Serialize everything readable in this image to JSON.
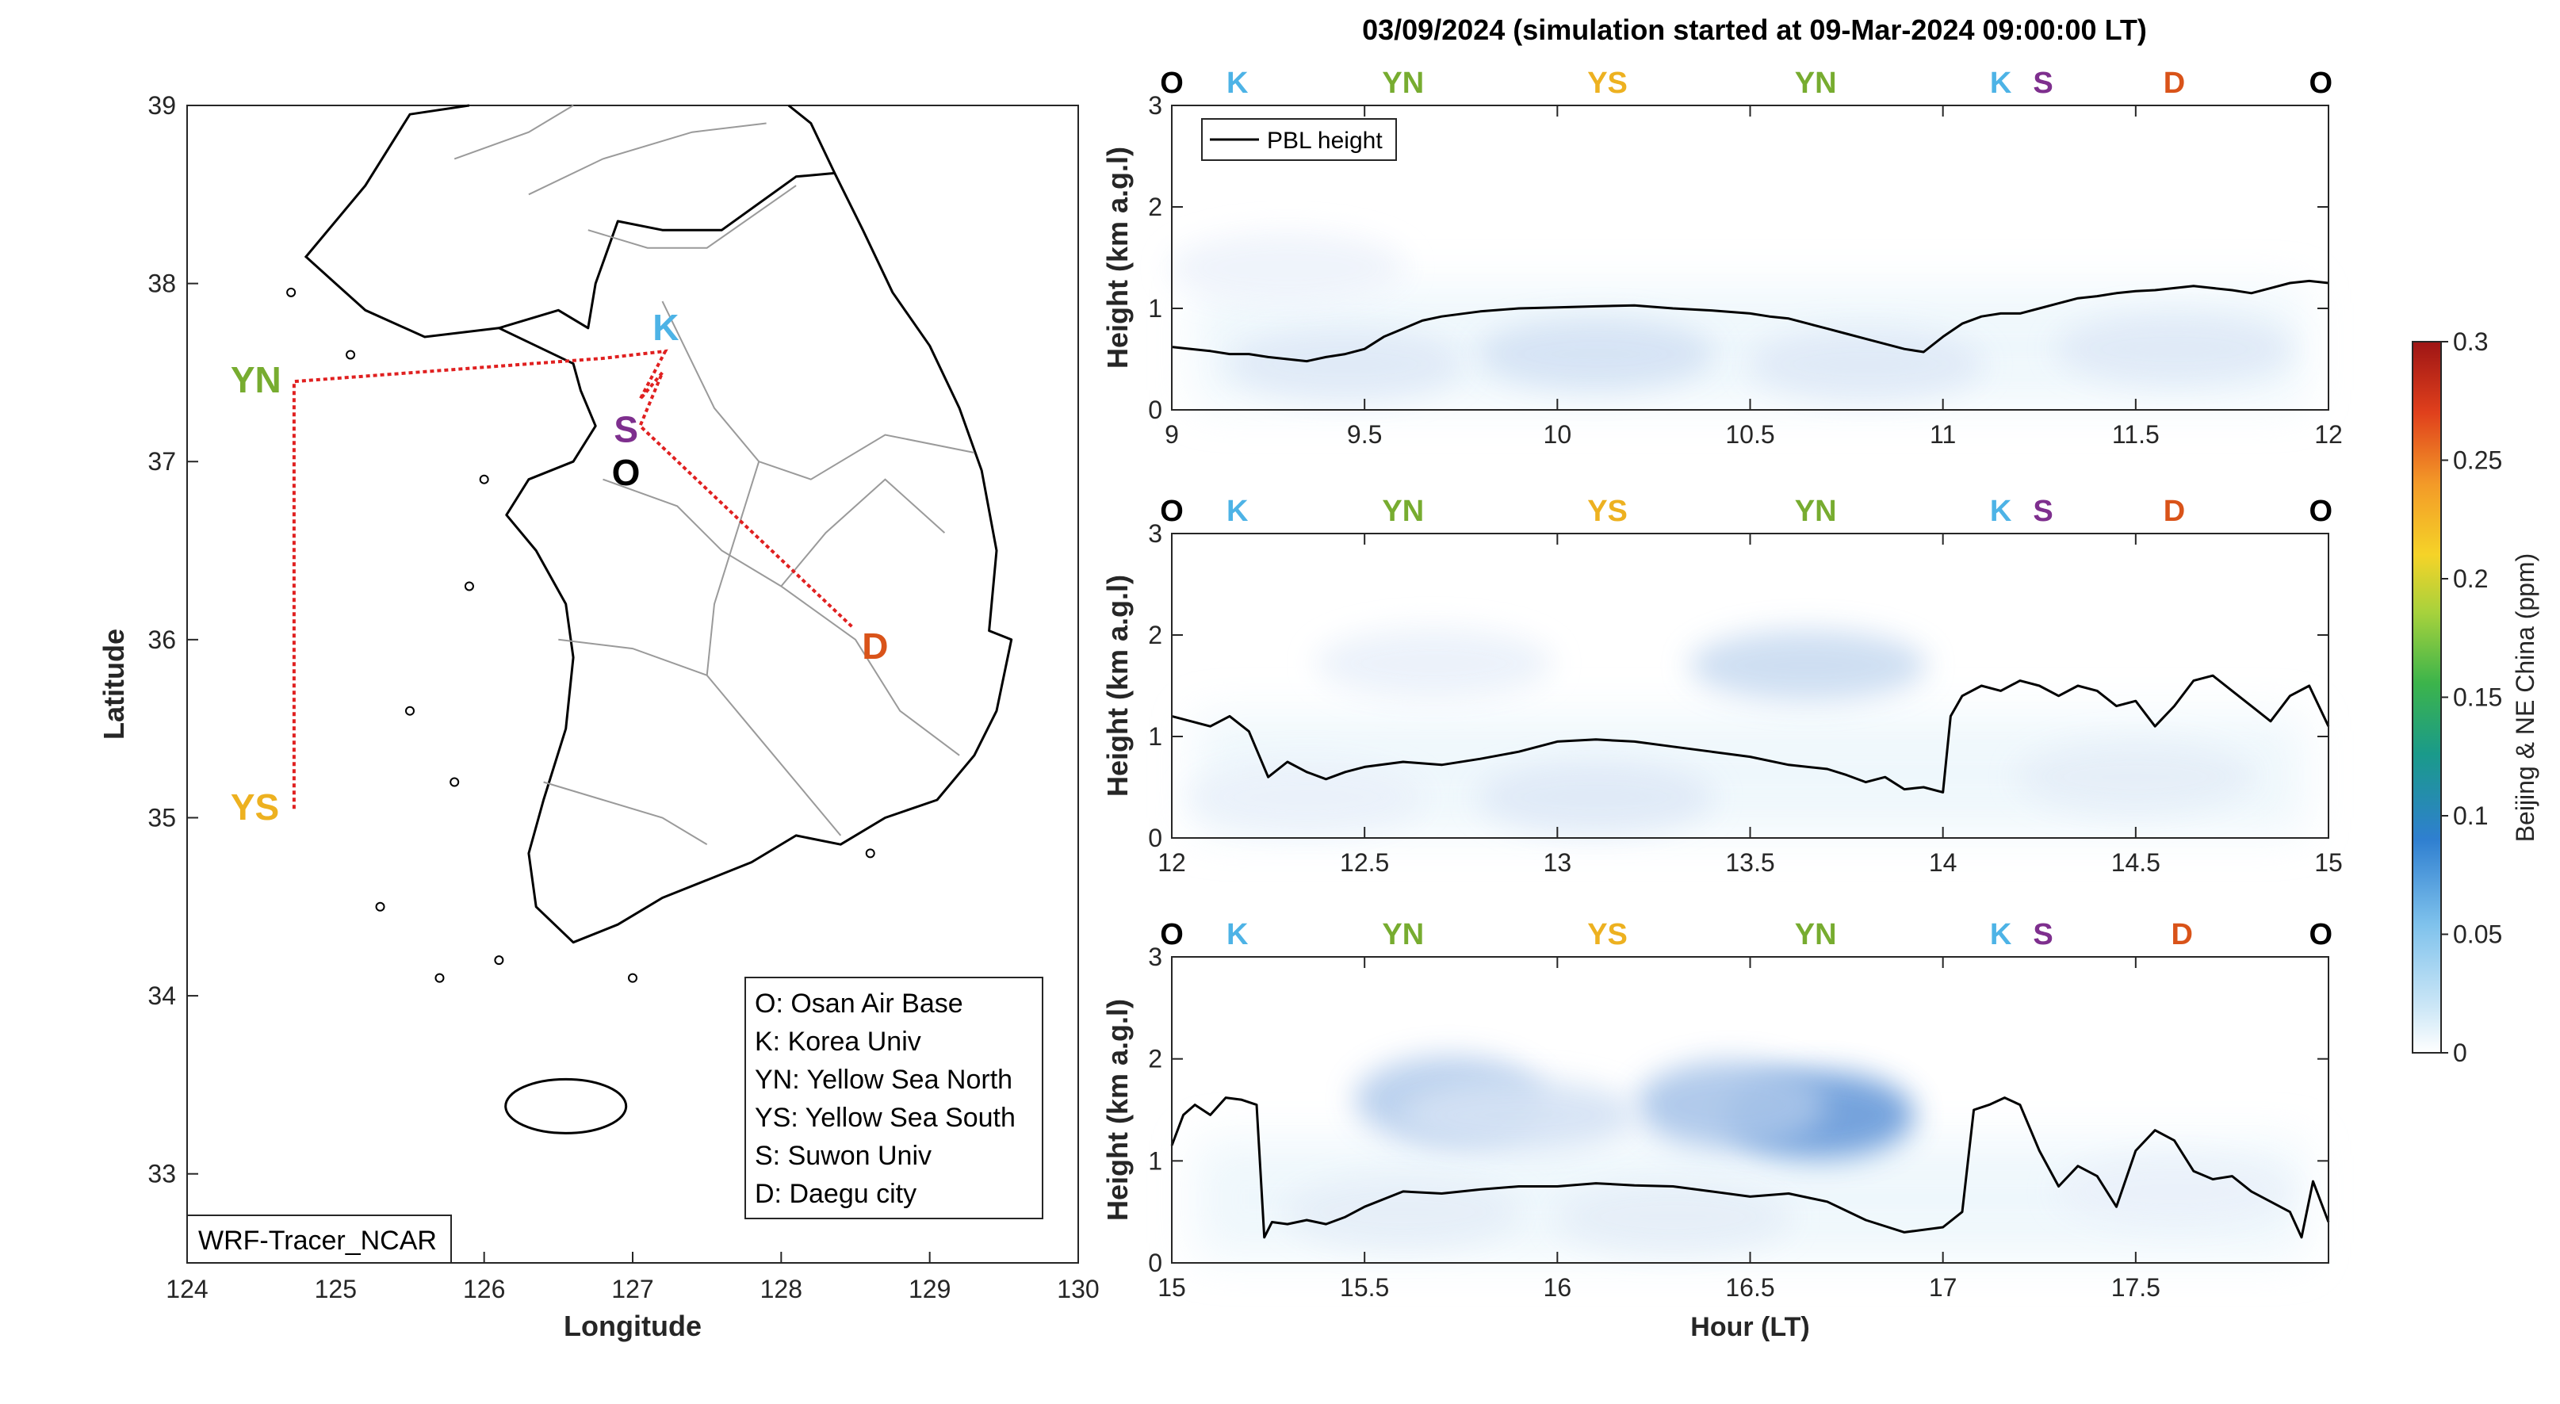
{
  "title": "03/09/2024 (simulation started at 09-Mar-2024 09:00:00 LT)",
  "colors": {
    "O": "#000000",
    "K": "#4db3e6",
    "S": "#7e2f8e",
    "YN": "#77ac30",
    "YS": "#edb120",
    "D": "#d95319",
    "track": "#e02020",
    "pbl": "#000000"
  },
  "map": {
    "xlabel": "Longitude",
    "ylabel": "Latitude",
    "xlim": [
      124,
      130
    ],
    "ylim": [
      32.5,
      39
    ],
    "xticks": [
      "124",
      "125",
      "126",
      "127",
      "128",
      "129",
      "130"
    ],
    "yticks": [
      "33",
      "34",
      "35",
      "36",
      "37",
      "38",
      "39"
    ],
    "model_label": "WRF-Tracer_NCAR",
    "sites": [
      {
        "id": "YN",
        "label": "YN",
        "lon": 124.72,
        "lat": 37.45
      },
      {
        "id": "YS",
        "label": "YS",
        "lon": 124.72,
        "lat": 35.05
      },
      {
        "id": "K",
        "label": "K",
        "lon": 127.22,
        "lat": 37.62
      },
      {
        "id": "S",
        "label": "S",
        "lon": 126.97,
        "lat": 37.28
      },
      {
        "id": "O",
        "label": "O",
        "lon": 127.03,
        "lat": 37.09
      },
      {
        "id": "D",
        "label": "D",
        "lon": 128.48,
        "lat": 36.07
      }
    ],
    "legend": [
      "O: Osan Air Base",
      "K: Korea Univ",
      "YN: Yellow Sea North",
      "YS: Yellow Sea South",
      "S: Suwon Univ",
      "D: Daegu city"
    ]
  },
  "colorbar": {
    "label": "Beijing & NE China (ppm)",
    "ticks": [
      "0",
      "0.05",
      "0.1",
      "0.15",
      "0.2",
      "0.25",
      "0.3"
    ],
    "range": [
      0,
      0.3
    ]
  },
  "chart_data": [
    {
      "type": "heatmap",
      "x": "hour",
      "xlim": [
        9,
        12
      ],
      "ylim": [
        0,
        3
      ],
      "xticks": [
        "9",
        "9.5",
        "10",
        "10.5",
        "11",
        "11.5",
        "12"
      ],
      "yticks": [
        "0",
        "1",
        "2",
        "3"
      ],
      "ylabel": "Height (km a.g.l)",
      "xlabel": "",
      "legend": "PBL height",
      "top_labels": [
        {
          "text": "O",
          "hour": 9.0
        },
        {
          "text": "K",
          "hour": 9.17
        },
        {
          "text": "YN",
          "hour": 9.6
        },
        {
          "text": "YS",
          "hour": 10.13
        },
        {
          "text": "YN",
          "hour": 10.67
        },
        {
          "text": "K",
          "hour": 11.15
        },
        {
          "text": "S",
          "hour": 11.26
        },
        {
          "text": "D",
          "hour": 11.6
        },
        {
          "text": "O",
          "hour": 11.98
        }
      ],
      "pbl_hours": [
        9.0,
        9.05,
        9.1,
        9.15,
        9.2,
        9.25,
        9.3,
        9.35,
        9.4,
        9.45,
        9.5,
        9.55,
        9.6,
        9.65,
        9.7,
        9.8,
        9.9,
        10.0,
        10.1,
        10.2,
        10.3,
        10.4,
        10.5,
        10.55,
        10.6,
        10.65,
        10.7,
        10.75,
        10.8,
        10.85,
        10.9,
        10.95,
        11.0,
        11.05,
        11.1,
        11.15,
        11.2,
        11.25,
        11.3,
        11.35,
        11.4,
        11.45,
        11.5,
        11.55,
        11.6,
        11.65,
        11.7,
        11.75,
        11.8,
        11.85,
        11.9,
        11.95,
        12.0
      ],
      "pbl_km": [
        0.62,
        0.6,
        0.58,
        0.55,
        0.55,
        0.52,
        0.5,
        0.48,
        0.52,
        0.55,
        0.6,
        0.72,
        0.8,
        0.88,
        0.92,
        0.97,
        1.0,
        1.01,
        1.02,
        1.03,
        1.0,
        0.98,
        0.95,
        0.92,
        0.9,
        0.85,
        0.8,
        0.75,
        0.7,
        0.65,
        0.6,
        0.57,
        0.72,
        0.85,
        0.92,
        0.95,
        0.95,
        1.0,
        1.05,
        1.1,
        1.12,
        1.15,
        1.17,
        1.18,
        1.2,
        1.22,
        1.2,
        1.18,
        1.15,
        1.2,
        1.25,
        1.27,
        1.25
      ],
      "tracer_blobs": [
        {
          "hour": 10.1,
          "height_km": 0.55,
          "ppm": 0.02
        },
        {
          "hour": 9.45,
          "height_km": 0.45,
          "ppm": 0.015
        },
        {
          "hour": 10.8,
          "height_km": 0.45,
          "ppm": 0.015
        },
        {
          "hour": 11.6,
          "height_km": 0.6,
          "ppm": 0.015
        },
        {
          "hour": 9.3,
          "height_km": 1.4,
          "ppm": 0.008
        }
      ]
    },
    {
      "type": "heatmap",
      "x": "hour",
      "xlim": [
        12,
        15
      ],
      "ylim": [
        0,
        3
      ],
      "xticks": [
        "12",
        "12.5",
        "13",
        "13.5",
        "14",
        "14.5",
        "15"
      ],
      "yticks": [
        "0",
        "1",
        "2",
        "3"
      ],
      "ylabel": "Height (km a.g.l)",
      "xlabel": "",
      "top_labels": [
        {
          "text": "O",
          "hour": 12.0
        },
        {
          "text": "K",
          "hour": 12.17
        },
        {
          "text": "YN",
          "hour": 12.6
        },
        {
          "text": "YS",
          "hour": 13.13
        },
        {
          "text": "YN",
          "hour": 13.67
        },
        {
          "text": "K",
          "hour": 14.15
        },
        {
          "text": "S",
          "hour": 14.26
        },
        {
          "text": "D",
          "hour": 14.6
        },
        {
          "text": "O",
          "hour": 14.98
        }
      ],
      "pbl_hours": [
        12.0,
        12.05,
        12.1,
        12.15,
        12.2,
        12.25,
        12.3,
        12.35,
        12.4,
        12.45,
        12.5,
        12.6,
        12.7,
        12.8,
        12.9,
        13.0,
        13.1,
        13.2,
        13.3,
        13.4,
        13.5,
        13.6,
        13.7,
        13.75,
        13.8,
        13.85,
        13.9,
        13.95,
        14.0,
        14.02,
        14.05,
        14.1,
        14.15,
        14.2,
        14.25,
        14.3,
        14.35,
        14.4,
        14.45,
        14.5,
        14.55,
        14.6,
        14.65,
        14.7,
        14.75,
        14.8,
        14.85,
        14.9,
        14.95,
        15.0
      ],
      "pbl_km": [
        1.2,
        1.15,
        1.1,
        1.2,
        1.05,
        0.6,
        0.75,
        0.65,
        0.58,
        0.65,
        0.7,
        0.75,
        0.72,
        0.78,
        0.85,
        0.95,
        0.97,
        0.95,
        0.9,
        0.85,
        0.8,
        0.72,
        0.68,
        0.62,
        0.55,
        0.6,
        0.48,
        0.5,
        0.45,
        1.2,
        1.4,
        1.5,
        1.45,
        1.55,
        1.5,
        1.4,
        1.5,
        1.45,
        1.3,
        1.35,
        1.1,
        1.3,
        1.55,
        1.6,
        1.45,
        1.3,
        1.15,
        1.4,
        1.5,
        1.1
      ],
      "tracer_blobs": [
        {
          "hour": 13.65,
          "height_km": 1.7,
          "ppm": 0.025
        },
        {
          "hour": 12.68,
          "height_km": 1.72,
          "ppm": 0.01
        },
        {
          "hour": 13.1,
          "height_km": 0.4,
          "ppm": 0.015
        },
        {
          "hour": 12.35,
          "height_km": 0.4,
          "ppm": 0.01
        },
        {
          "hour": 14.5,
          "height_km": 0.6,
          "ppm": 0.012
        }
      ]
    },
    {
      "type": "heatmap",
      "x": "hour",
      "xlim": [
        15,
        18
      ],
      "ylim": [
        0,
        3
      ],
      "xticks": [
        "15",
        "15.5",
        "16",
        "16.5",
        "17",
        "17.5"
      ],
      "yticks": [
        "0",
        "1",
        "2",
        "3"
      ],
      "ylabel": "Height (km a.g.l)",
      "xlabel": "Hour (LT)",
      "top_labels": [
        {
          "text": "O",
          "hour": 15.0
        },
        {
          "text": "K",
          "hour": 15.17
        },
        {
          "text": "YN",
          "hour": 15.6
        },
        {
          "text": "YS",
          "hour": 16.13
        },
        {
          "text": "YN",
          "hour": 16.67
        },
        {
          "text": "K",
          "hour": 17.15
        },
        {
          "text": "S",
          "hour": 17.26
        },
        {
          "text": "D",
          "hour": 17.62
        },
        {
          "text": "O",
          "hour": 17.98
        }
      ],
      "pbl_hours": [
        15.0,
        15.03,
        15.06,
        15.1,
        15.14,
        15.18,
        15.22,
        15.24,
        15.26,
        15.3,
        15.35,
        15.4,
        15.45,
        15.5,
        15.6,
        15.7,
        15.8,
        15.9,
        16.0,
        16.1,
        16.2,
        16.3,
        16.4,
        16.5,
        16.6,
        16.7,
        16.8,
        16.9,
        17.0,
        17.05,
        17.08,
        17.12,
        17.16,
        17.2,
        17.25,
        17.3,
        17.35,
        17.4,
        17.45,
        17.5,
        17.55,
        17.6,
        17.65,
        17.7,
        17.75,
        17.8,
        17.85,
        17.9,
        17.93,
        17.96,
        18.0
      ],
      "pbl_km": [
        1.15,
        1.45,
        1.55,
        1.45,
        1.62,
        1.6,
        1.55,
        0.25,
        0.4,
        0.38,
        0.42,
        0.38,
        0.45,
        0.55,
        0.7,
        0.68,
        0.72,
        0.75,
        0.75,
        0.78,
        0.76,
        0.75,
        0.7,
        0.65,
        0.68,
        0.6,
        0.42,
        0.3,
        0.35,
        0.5,
        1.5,
        1.55,
        1.62,
        1.55,
        1.1,
        0.75,
        0.95,
        0.85,
        0.55,
        1.1,
        1.3,
        1.2,
        0.9,
        0.82,
        0.85,
        0.7,
        0.6,
        0.5,
        0.25,
        0.8,
        0.4
      ],
      "tracer_blobs": [
        {
          "hour": 16.68,
          "height_km": 1.45,
          "ppm": 0.07
        },
        {
          "hour": 16.45,
          "height_km": 1.55,
          "ppm": 0.04
        },
        {
          "hour": 15.72,
          "height_km": 1.6,
          "ppm": 0.035
        },
        {
          "hour": 15.9,
          "height_km": 1.45,
          "ppm": 0.02
        },
        {
          "hour": 16.3,
          "height_km": 0.45,
          "ppm": 0.012
        },
        {
          "hour": 15.6,
          "height_km": 0.5,
          "ppm": 0.012
        },
        {
          "hour": 17.6,
          "height_km": 0.7,
          "ppm": 0.01
        }
      ]
    }
  ]
}
